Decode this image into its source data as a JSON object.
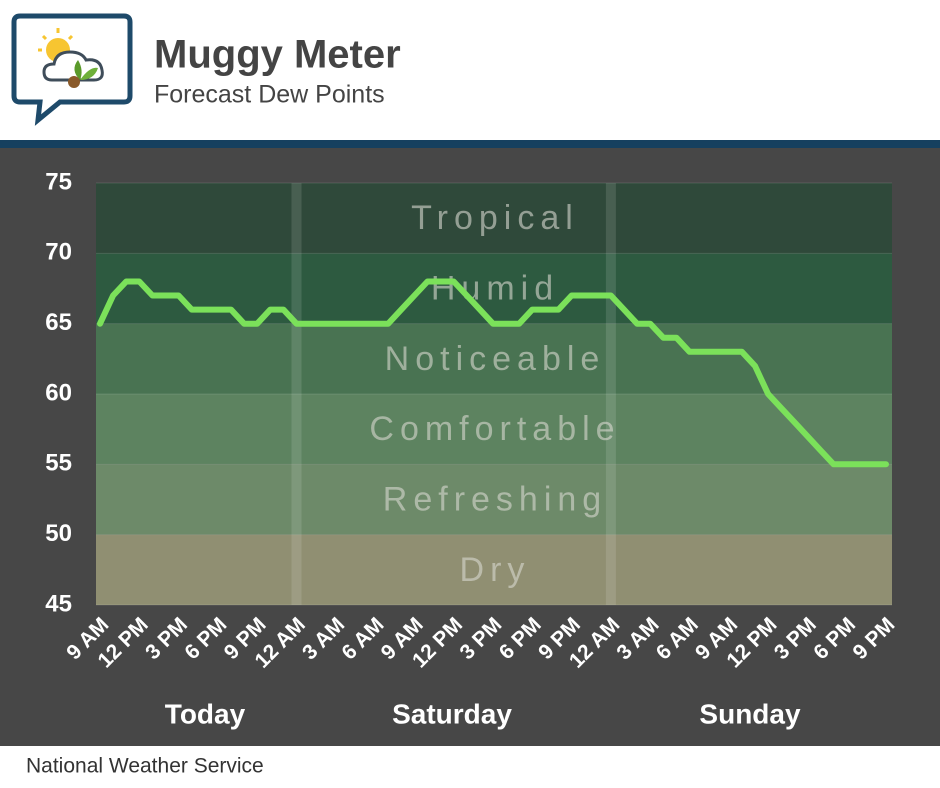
{
  "header": {
    "title": "Muggy Meter",
    "subtitle": "Forecast Dew Points"
  },
  "chart_data": {
    "type": "line",
    "categories": [
      "9 AM",
      null,
      null,
      "12 PM",
      null,
      null,
      "3 PM",
      null,
      null,
      "6 PM",
      null,
      null,
      "9 PM",
      null,
      null,
      "12 AM",
      null,
      null,
      "3 AM",
      null,
      null,
      "6 AM",
      null,
      null,
      "9 AM",
      null,
      null,
      "12 PM",
      null,
      null,
      "3 PM",
      null,
      null,
      "6 PM",
      null,
      null,
      "9 PM",
      null,
      null,
      "12 AM",
      null,
      null,
      "3 AM",
      null,
      null,
      "6 AM",
      null,
      null,
      "9 AM",
      null,
      null,
      "12 PM",
      null,
      null,
      "3 PM",
      null,
      null,
      "6 PM",
      null,
      null,
      "9 PM"
    ],
    "series": [
      {
        "name": "Dew Point",
        "color": "#7be15a",
        "values": [
          65,
          67,
          68,
          68,
          67,
          67,
          67,
          66,
          66,
          66,
          66,
          65,
          65,
          66,
          66,
          65,
          65,
          65,
          65,
          65,
          65,
          65,
          65,
          66,
          67,
          68,
          68,
          68,
          67,
          66,
          65,
          65,
          65,
          66,
          66,
          66,
          67,
          67,
          67,
          67,
          66,
          65,
          65,
          64,
          64,
          63,
          63,
          63,
          63,
          63,
          62,
          60,
          59,
          58,
          57,
          56,
          55,
          55,
          55,
          55,
          55
        ]
      }
    ],
    "days": [
      "Today",
      "Saturday",
      "Sunday"
    ],
    "bands": [
      {
        "name": "Dry",
        "from": 45,
        "to": 50,
        "color": "#908f72"
      },
      {
        "name": "Refreshing",
        "from": 50,
        "to": 55,
        "color": "#6d8a69"
      },
      {
        "name": "Comfortable",
        "from": 55,
        "to": 60,
        "color": "#5d8360"
      },
      {
        "name": "Noticeable",
        "from": 60,
        "to": 65,
        "color": "#497352"
      },
      {
        "name": "Humid",
        "from": 65,
        "to": 70,
        "color": "#2d5a40"
      },
      {
        "name": "Tropical",
        "from": 70,
        "to": 75,
        "color": "#2f493a"
      }
    ],
    "ylim": [
      45,
      75
    ],
    "yticks": [
      45,
      50,
      55,
      60,
      65,
      70,
      75
    ]
  },
  "footer": "National Weather Service"
}
